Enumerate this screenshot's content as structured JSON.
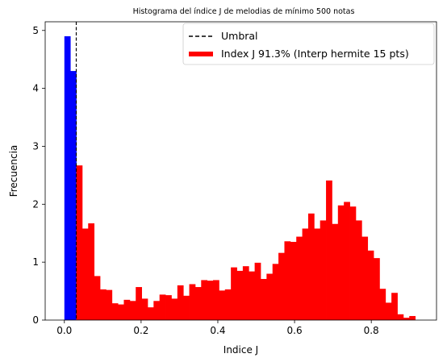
{
  "chart_data": {
    "type": "bar",
    "title": "Histograma del índice J de melodias de mínimo 500 notas",
    "xlabel": "Indice J",
    "ylabel": "Frecuencia",
    "xlim": [
      -0.05,
      0.97
    ],
    "ylim": [
      0,
      5.15
    ],
    "xticks": [
      "0.0",
      "0.2",
      "0.4",
      "0.6",
      "0.8"
    ],
    "xtick_values": [
      0.0,
      0.2,
      0.4,
      0.6,
      0.8
    ],
    "yticks": [
      "0",
      "1",
      "2",
      "3",
      "4",
      "5"
    ],
    "ytick_values": [
      0,
      1,
      2,
      3,
      4,
      5
    ],
    "bin_start": 0.0,
    "bin_width": 0.0155,
    "threshold": 0.031,
    "threshold_label": "Umbral",
    "legend_position": "top-right",
    "series": [
      {
        "name": "Index J 91.3% (Interp hermite 15 pts)",
        "color": "#ff0000",
        "below_threshold_color": "#0000ff",
        "values": [
          4.9,
          4.3,
          2.67,
          1.58,
          1.67,
          0.76,
          0.53,
          0.52,
          0.29,
          0.27,
          0.35,
          0.33,
          0.57,
          0.37,
          0.22,
          0.33,
          0.44,
          0.43,
          0.37,
          0.6,
          0.42,
          0.62,
          0.57,
          0.69,
          0.68,
          0.69,
          0.51,
          0.53,
          0.91,
          0.85,
          0.93,
          0.84,
          0.99,
          0.71,
          0.8,
          0.97,
          1.16,
          1.36,
          1.35,
          1.44,
          1.58,
          1.84,
          1.58,
          1.72,
          2.41,
          1.66,
          1.98,
          2.04,
          1.96,
          1.72,
          1.44,
          1.2,
          1.07,
          0.54,
          0.3,
          0.47,
          0.1,
          0.04,
          0.07
        ]
      }
    ]
  }
}
